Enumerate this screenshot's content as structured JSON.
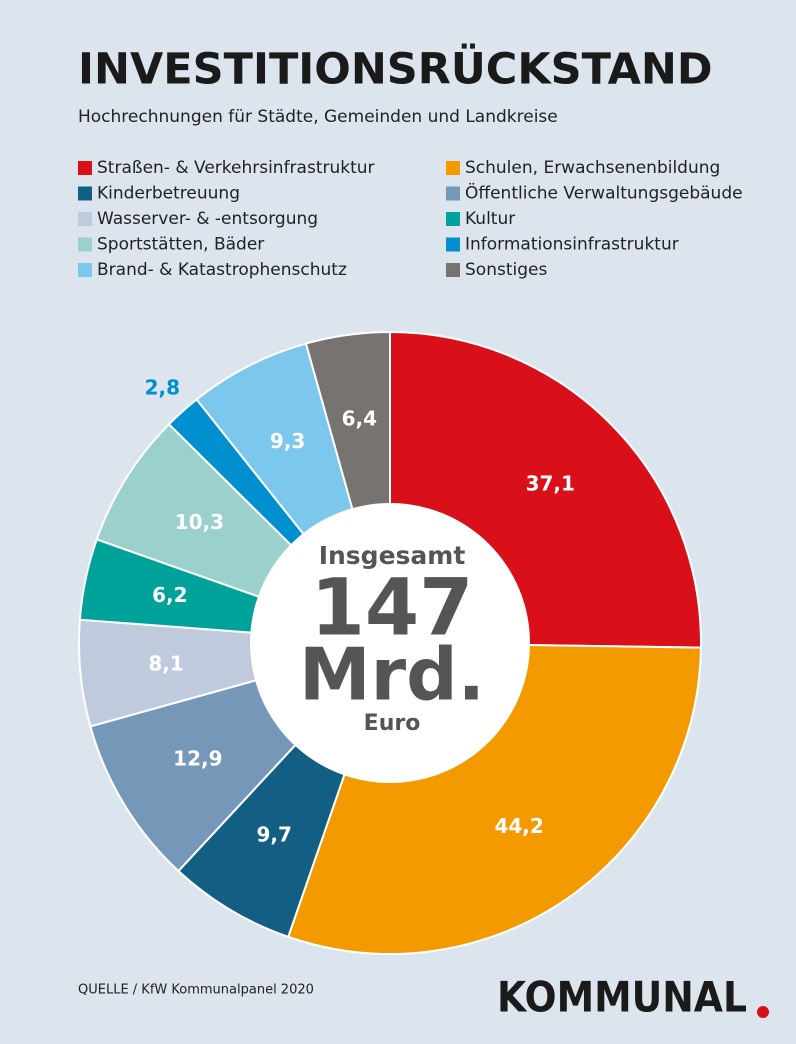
{
  "chart_data": {
    "type": "donut",
    "title": "INVESTITIONSRÜCKSTAND",
    "subtitle": "Hochrechnungen für Städte, Gemeinden und Landkreise",
    "series": [
      {
        "name": "Straßen- & Verkehrsinfrastruktur",
        "color": "#d90f1a"
      },
      {
        "name": "Schulen, Erwachsenenbildung",
        "color": "#f29a00"
      },
      {
        "name": "Kinderbetreuung",
        "color": "#135f83"
      },
      {
        "name": "Öffentliche Verwaltungsgebäude",
        "color": "#7597b8"
      },
      {
        "name": "Wasserver- & -entsorgung",
        "color": "#bfcbdc"
      },
      {
        "name": "Kultur",
        "color": "#00a29a"
      },
      {
        "name": "Sportstätten, Bäder",
        "color": "#9bd1cc"
      },
      {
        "name": "Informationsinfrastruktur",
        "color": "#0090d0"
      },
      {
        "name": "Brand- & Katastrophenschutz",
        "color": "#7cc8ec"
      },
      {
        "name": "Sonstiges",
        "color": "#767370"
      }
    ],
    "values": [
      37.1,
      44.2,
      9.7,
      12.9,
      8.1,
      6.2,
      10.3,
      2.8,
      9.3,
      6.4
    ],
    "value_labels": [
      "37,1",
      "44,2",
      "9,7",
      "12,9",
      "8,1",
      "6,2",
      "10,3",
      "2,8",
      "9,3",
      "6,4"
    ],
    "center_title": "Insgesamt",
    "center_value": 147,
    "center_unit": "Mrd.",
    "center_currency": "Euro",
    "source": "QUELLE / KfW Kommunalpanel 2020",
    "brand": "KOMMUNAL"
  }
}
